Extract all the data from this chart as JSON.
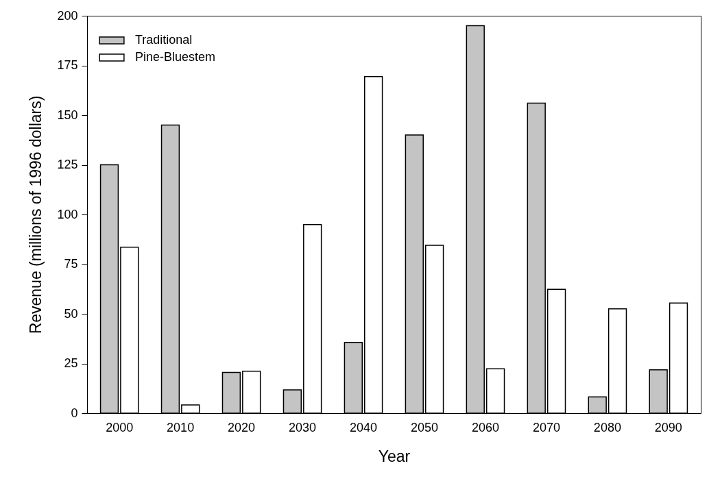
{
  "chart_data": {
    "type": "bar",
    "xlabel": "Year",
    "ylabel": "Revenue (millions of 1996 dollars)",
    "categories": [
      "2000",
      "2010",
      "2020",
      "2030",
      "2040",
      "2050",
      "2060",
      "2070",
      "2080",
      "2090"
    ],
    "series": [
      {
        "name": "Traditional",
        "color": "#c4c4c4",
        "values": [
          125,
          145,
          20.5,
          11.7,
          35.6,
          140,
          195,
          156,
          8.2,
          21.8
        ]
      },
      {
        "name": "Pine-Bluestem",
        "color": "#ffffff",
        "values": [
          83.5,
          4.1,
          21.1,
          94.9,
          169.4,
          84.5,
          22.3,
          62.3,
          52.5,
          55.4
        ]
      }
    ],
    "ylim": [
      0,
      200
    ],
    "yticks": [
      0,
      25,
      50,
      75,
      100,
      125,
      150,
      175,
      200
    ],
    "grid": false,
    "legend": "top left"
  }
}
